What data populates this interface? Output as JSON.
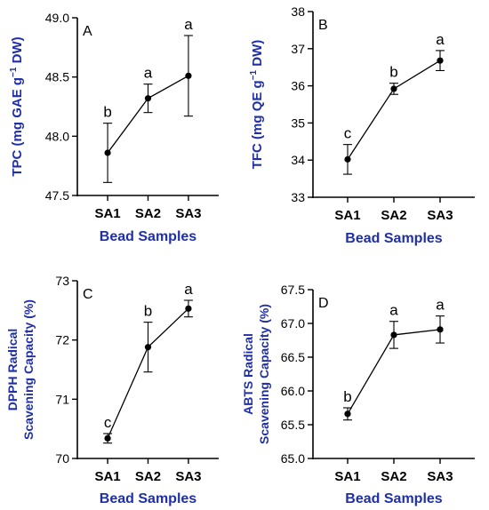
{
  "chart_data": [
    {
      "type": "line",
      "panel_label": "A",
      "categories": [
        "SA1",
        "SA2",
        "SA3"
      ],
      "values": [
        47.86,
        48.32,
        48.51
      ],
      "errors": [
        0.25,
        0.12,
        0.34
      ],
      "letters": [
        "b",
        "a",
        "a"
      ],
      "ylabel_main": "TPC (mg GAE g",
      "ylabel_sup": "−1",
      "ylabel_tail": " DW)",
      "xlabel": "Bead Samples",
      "ylim": [
        47.5,
        49.0
      ],
      "yticks": [
        "47.5",
        "48.0",
        "48.5",
        "49.0"
      ]
    },
    {
      "type": "line",
      "panel_label": "B",
      "categories": [
        "SA1",
        "SA2",
        "SA3"
      ],
      "values": [
        34.02,
        35.92,
        36.68
      ],
      "errors": [
        0.4,
        0.15,
        0.27
      ],
      "letters": [
        "c",
        "b",
        "a"
      ],
      "ylabel_main": "TFC (mg QE g",
      "ylabel_sup": "−1",
      "ylabel_tail": " DW)",
      "xlabel": "Bead Samples",
      "ylim": [
        33,
        38
      ],
      "yticks": [
        "33",
        "34",
        "35",
        "36",
        "37",
        "38"
      ]
    },
    {
      "type": "line",
      "panel_label": "C",
      "categories": [
        "SA1",
        "SA2",
        "SA3"
      ],
      "values": [
        70.34,
        71.88,
        72.53
      ],
      "errors": [
        0.08,
        0.42,
        0.14
      ],
      "letters": [
        "c",
        "b",
        "a"
      ],
      "ylabel_line1": "DPPH Radical",
      "ylabel_line2": "Scavening Capacity (%)",
      "xlabel": "Bead Samples",
      "ylim": [
        70,
        73
      ],
      "yticks": [
        "70",
        "71",
        "72",
        "73"
      ]
    },
    {
      "type": "line",
      "panel_label": "D",
      "categories": [
        "SA1",
        "SA2",
        "SA3"
      ],
      "values": [
        65.66,
        66.83,
        66.91
      ],
      "errors": [
        0.09,
        0.2,
        0.2
      ],
      "letters": [
        "b",
        "a",
        "a"
      ],
      "ylabel_line1": "ABTS Radical",
      "ylabel_line2": "Scavening Capacity (%)",
      "xlabel": "Bead Samples",
      "ylim": [
        65.0,
        67.5
      ],
      "yticks": [
        "65.0",
        "65.5",
        "66.0",
        "66.5",
        "67.0",
        "67.5"
      ]
    }
  ]
}
